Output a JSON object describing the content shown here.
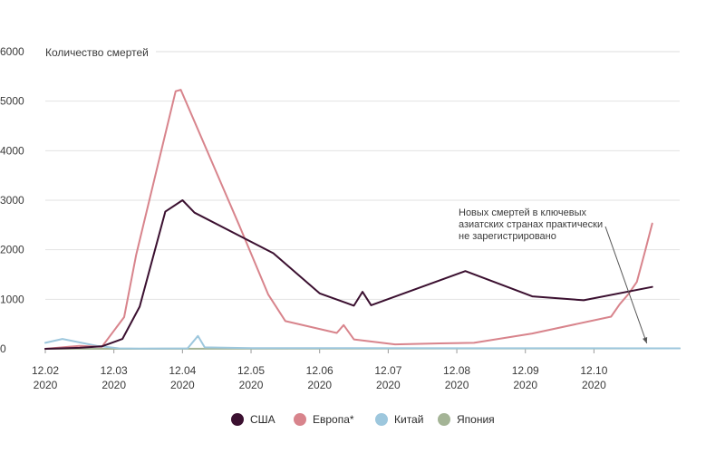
{
  "chart_data": {
    "type": "line",
    "title": "",
    "xlabel": "",
    "ylabel": "Количество смертей",
    "ylim": [
      0,
      6000
    ],
    "yticks": [
      0,
      1000,
      2000,
      3000,
      4000,
      5000,
      6000
    ],
    "xlim": [
      0,
      37
    ],
    "xticks": [
      {
        "x": 0,
        "line1": "12.02",
        "line2": "2020"
      },
      {
        "x": 4,
        "line1": "12.03",
        "line2": "2020"
      },
      {
        "x": 8,
        "line1": "12.04",
        "line2": "2020"
      },
      {
        "x": 12,
        "line1": "12.05",
        "line2": "2020"
      },
      {
        "x": 16,
        "line1": "12.06",
        "line2": "2020"
      },
      {
        "x": 20,
        "line1": "12.07",
        "line2": "2020"
      },
      {
        "x": 24,
        "line1": "12.08",
        "line2": "2020"
      },
      {
        "x": 28,
        "line1": "12.09",
        "line2": "2020"
      },
      {
        "x": 32,
        "line1": "12.10",
        "line2": "2020"
      }
    ],
    "series": [
      {
        "name": "США",
        "color": "#3b1030",
        "x": [
          0,
          2,
          3.3,
          4.5,
          5.5,
          7,
          8,
          8.7,
          13.3,
          16,
          18,
          18.5,
          19,
          24.5,
          28.4,
          31.4,
          35.4
        ],
        "y": [
          0,
          20,
          50,
          200,
          850,
          2770,
          3000,
          2750,
          1930,
          1120,
          870,
          1150,
          880,
          1570,
          1060,
          980,
          1250
        ]
      },
      {
        "name": "Европа*",
        "color": "#d8848c",
        "x": [
          0,
          2,
          3.3,
          4.6,
          5.3,
          7.6,
          7.9,
          11.3,
          13,
          14,
          17,
          17.4,
          18,
          20.4,
          23,
          25,
          28.4,
          33,
          33.5,
          34,
          34.5,
          35,
          35.4
        ],
        "y": [
          0,
          60,
          40,
          640,
          1900,
          5200,
          5230,
          2500,
          1100,
          560,
          320,
          480,
          190,
          90,
          110,
          120,
          310,
          650,
          900,
          1100,
          1350,
          2000,
          2530
        ]
      },
      {
        "name": "Китай",
        "color": "#9dc7dd",
        "x": [
          0,
          1,
          3,
          4.3,
          5.5,
          8.3,
          8.9,
          9.3,
          12,
          37
        ],
        "y": [
          120,
          200,
          60,
          10,
          5,
          10,
          260,
          30,
          15,
          10
        ]
      },
      {
        "name": "Япония",
        "color": "#a4b496",
        "x": [
          0,
          37
        ],
        "y": [
          0,
          10
        ]
      }
    ],
    "annotation": {
      "lines": [
        "Новых смертей в ключевых",
        "азиатских странах практически",
        "не зарегистрировано"
      ],
      "arrow_to": {
        "x": 35.4,
        "y": 0
      }
    },
    "legend_position": "bottom-center"
  }
}
